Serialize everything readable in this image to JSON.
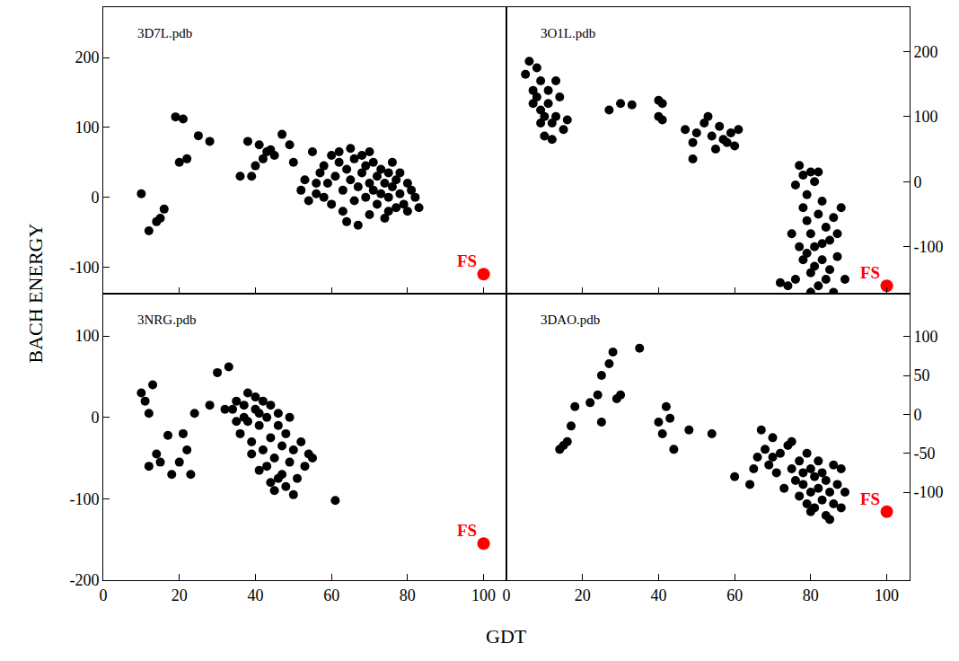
{
  "chart_data": [
    {
      "type": "scatter",
      "title": "3D7L.pdb",
      "xlim": [
        0,
        106
      ],
      "xticks": [
        0,
        20,
        40,
        60,
        80,
        100
      ],
      "ylim": [
        -138,
        272
      ],
      "yticks": [
        -100,
        0,
        100,
        200
      ],
      "tick_labels": "y",
      "series": [
        {
          "color": "#000000",
          "marker": "circle",
          "x": [
            10,
            12,
            14,
            15,
            16,
            19,
            21,
            20,
            22,
            25,
            28,
            36,
            38,
            39,
            40,
            41,
            42,
            43,
            44,
            45,
            47,
            49,
            50,
            52,
            53,
            54,
            55,
            56,
            57,
            58,
            59,
            60,
            60,
            61,
            62,
            63,
            63,
            64,
            65,
            65,
            66,
            66,
            67,
            67,
            68,
            68,
            69,
            69,
            70,
            70,
            71,
            71,
            72,
            72,
            73,
            73,
            74,
            74,
            75,
            75,
            76,
            76,
            77,
            77,
            78,
            78,
            79,
            80,
            80,
            81,
            82,
            83,
            64,
            62,
            58,
            56,
            70,
            75
          ],
          "values": [
            5,
            -48,
            -35,
            -30,
            -17,
            115,
            112,
            50,
            55,
            88,
            80,
            30,
            80,
            30,
            45,
            75,
            55,
            65,
            68,
            60,
            90,
            75,
            50,
            10,
            25,
            -5,
            65,
            5,
            35,
            45,
            20,
            60,
            -10,
            30,
            50,
            10,
            -20,
            40,
            70,
            25,
            -5,
            55,
            15,
            -40,
            35,
            60,
            0,
            45,
            20,
            -25,
            50,
            10,
            30,
            -10,
            40,
            5,
            20,
            -30,
            35,
            0,
            15,
            50,
            -15,
            25,
            5,
            35,
            -10,
            20,
            -20,
            10,
            0,
            -15,
            -35,
            65,
            0,
            20,
            65,
            -20
          ]
        },
        {
          "name": "FS",
          "color": "#ff0000",
          "marker": "circle",
          "x": [
            100
          ],
          "values": [
            -110
          ]
        }
      ]
    },
    {
      "type": "scatter",
      "title": "3O1L.pdb",
      "xlim": [
        0,
        106
      ],
      "xticks": [
        0,
        20,
        40,
        60,
        80,
        100
      ],
      "ylim": [
        -172,
        268
      ],
      "yticks": [
        -100,
        0,
        100,
        200
      ],
      "tick_labels": "y",
      "series": [
        {
          "color": "#000000",
          "marker": "circle",
          "x": [
            5,
            6,
            7,
            7,
            8,
            8,
            9,
            9,
            10,
            10,
            11,
            11,
            12,
            12,
            13,
            14,
            15,
            16,
            9,
            13,
            27,
            30,
            33,
            40,
            40,
            41,
            41,
            47,
            49,
            49,
            50,
            52,
            53,
            54,
            55,
            56,
            57,
            58,
            59,
            60,
            61,
            77,
            78,
            79,
            80,
            81,
            82,
            76,
            78,
            79,
            80,
            81,
            82,
            83,
            84,
            85,
            86,
            87,
            78,
            80,
            82,
            76,
            74,
            72,
            77,
            79,
            81,
            83,
            85,
            87,
            89,
            75,
            84,
            86,
            88,
            80,
            83
          ],
          "values": [
            165,
            185,
            140,
            120,
            175,
            130,
            110,
            155,
            100,
            70,
            140,
            120,
            65,
            90,
            100,
            130,
            80,
            95,
            90,
            155,
            110,
            120,
            118,
            125,
            100,
            95,
            120,
            80,
            60,
            35,
            75,
            90,
            100,
            70,
            50,
            85,
            65,
            60,
            75,
            55,
            80,
            25,
            10,
            -20,
            15,
            0,
            15,
            -5,
            -40,
            -60,
            -80,
            -100,
            -50,
            -30,
            -70,
            -90,
            -55,
            -115,
            -120,
            -140,
            -160,
            -150,
            -160,
            -155,
            -100,
            -110,
            -130,
            -95,
            -135,
            -80,
            -150,
            -80,
            -150,
            -170,
            -40,
            -170,
            -120
          ]
        },
        {
          "name": "FS",
          "color": "#ff0000",
          "marker": "circle",
          "x": [
            100
          ],
          "values": [
            -160
          ]
        }
      ]
    },
    {
      "type": "scatter",
      "title": "3NRG.pdb",
      "xlim": [
        0,
        106
      ],
      "xticks": [
        0,
        20,
        40,
        60,
        80,
        100
      ],
      "ylim": [
        -200,
        152
      ],
      "yticks": [
        -200,
        -100,
        0,
        100
      ],
      "series": [
        {
          "color": "#000000",
          "marker": "circle",
          "x": [
            10,
            11,
            12,
            13,
            12,
            15,
            14,
            17,
            18,
            20,
            21,
            22,
            23,
            24,
            28,
            30,
            33,
            35,
            36,
            37,
            38,
            38,
            39,
            40,
            40,
            41,
            42,
            42,
            43,
            43,
            44,
            44,
            45,
            45,
            46,
            46,
            47,
            47,
            48,
            48,
            49,
            49,
            50,
            50,
            51,
            52,
            53,
            54,
            55,
            61,
            35,
            39,
            41,
            44,
            37,
            41,
            46,
            34,
            32
          ],
          "values": [
            30,
            20,
            5,
            40,
            -60,
            -55,
            -45,
            -22,
            -70,
            -55,
            -20,
            -40,
            -70,
            5,
            15,
            55,
            62,
            20,
            -20,
            15,
            -5,
            30,
            -30,
            10,
            25,
            -10,
            -40,
            20,
            0,
            -60,
            -25,
            15,
            -50,
            -90,
            -10,
            5,
            -35,
            -70,
            -20,
            -85,
            -55,
            0,
            -40,
            -95,
            -75,
            -30,
            -60,
            -45,
            -50,
            -102,
            -5,
            -45,
            -65,
            -80,
            0,
            5,
            -75,
            10,
            10
          ]
        },
        {
          "name": "FS",
          "color": "#ff0000",
          "marker": "circle",
          "x": [
            100
          ],
          "values": [
            -155
          ]
        }
      ]
    },
    {
      "type": "scatter",
      "title": "3DAO.pdb",
      "xlim": [
        0,
        106
      ],
      "xticks": [
        0,
        20,
        40,
        60,
        80,
        100
      ],
      "ylim": [
        -213,
        155
      ],
      "yticks": [
        -100,
        -50,
        0,
        50,
        100
      ],
      "series": [
        {
          "color": "#000000",
          "marker": "circle",
          "x": [
            14,
            15,
            16,
            17,
            18,
            22,
            24,
            25,
            25,
            27,
            28,
            29,
            30,
            35,
            40,
            41,
            42,
            43,
            44,
            48,
            54,
            60,
            64,
            66,
            67,
            68,
            69,
            70,
            71,
            72,
            73,
            74,
            75,
            75,
            76,
            77,
            77,
            78,
            79,
            79,
            80,
            80,
            81,
            81,
            82,
            82,
            83,
            83,
            84,
            84,
            85,
            85,
            86,
            86,
            87,
            88,
            88,
            89,
            80,
            78,
            70,
            65
          ],
          "values": [
            -45,
            -40,
            -35,
            -15,
            10,
            15,
            25,
            -10,
            50,
            65,
            80,
            20,
            25,
            85,
            -10,
            -25,
            10,
            -5,
            -45,
            -20,
            -25,
            -80,
            -90,
            -55,
            -20,
            -45,
            -65,
            -30,
            -75,
            -50,
            -95,
            -40,
            -70,
            -35,
            -85,
            -60,
            -105,
            -90,
            -50,
            -115,
            -70,
            -100,
            -80,
            -120,
            -60,
            -95,
            -110,
            -75,
            -130,
            -85,
            -100,
            -135,
            -65,
            -115,
            -90,
            -120,
            -70,
            -100,
            -125,
            -75,
            -55,
            -70
          ]
        },
        {
          "name": "FS",
          "color": "#ff0000",
          "marker": "circle",
          "x": [
            100
          ],
          "values": [
            -125
          ]
        }
      ]
    }
  ],
  "shared_axes": {
    "x_label": "GDT",
    "y_label": "BACH ENERGY"
  }
}
